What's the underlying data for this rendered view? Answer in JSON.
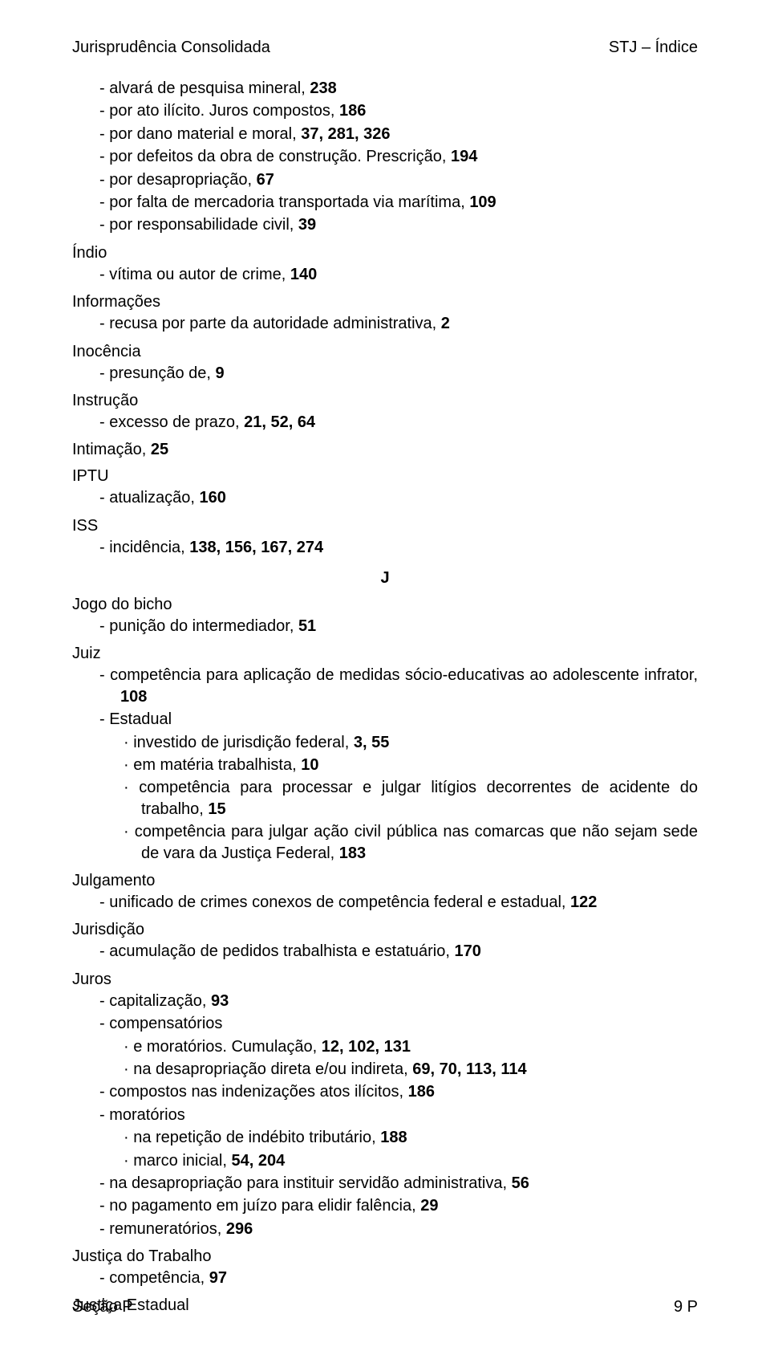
{
  "header": {
    "left": "Jurisprudência Consolidada",
    "right": "STJ – Índice"
  },
  "footer": {
    "left": "Seção P",
    "right": "9 P"
  },
  "sections": [
    {
      "letter": "",
      "preItems": [
        {
          "type": "l1",
          "pre": "-   ",
          "plain": "alvará de pesquisa mineral, ",
          "bold": "238"
        },
        {
          "type": "l1",
          "pre": "-   ",
          "plain": "por ato ilícito. Juros compostos, ",
          "bold": "186"
        },
        {
          "type": "l1",
          "pre": "-   ",
          "plain": "por dano material e moral, ",
          "bold": "37, 281, 326"
        },
        {
          "type": "l1",
          "pre": "-   ",
          "plain": "por defeitos da obra de construção. Prescrição, ",
          "bold": "194"
        },
        {
          "type": "l1",
          "pre": "-   ",
          "plain": "por desapropriação, ",
          "bold": "67"
        },
        {
          "type": "l1",
          "pre": "-   ",
          "plain": "por falta de mercadoria transportada via marítima, ",
          "bold": "109"
        },
        {
          "type": "l1",
          "pre": "-   ",
          "plain": "por responsabilidade civil, ",
          "bold": "39"
        }
      ],
      "groups": [
        {
          "term": "Índio",
          "items": [
            {
              "type": "l1",
              "pre": "-   ",
              "plain": "vítima ou autor de crime, ",
              "bold": "140"
            }
          ]
        },
        {
          "term": "Informações",
          "items": [
            {
              "type": "l1",
              "pre": "-   ",
              "plain": "recusa por parte da autoridade administrativa, ",
              "bold": "2"
            }
          ]
        },
        {
          "term": "Inocência",
          "items": [
            {
              "type": "l1",
              "pre": "-   ",
              "plain": "presunção de, ",
              "bold": "9"
            }
          ]
        },
        {
          "term": "Instrução",
          "items": [
            {
              "type": "l1",
              "pre": "-   ",
              "plain": "excesso de prazo, ",
              "bold": "21, 52, 64"
            }
          ]
        },
        {
          "term": "Intimação, ",
          "termBold": "25",
          "items": []
        },
        {
          "term": "IPTU",
          "items": [
            {
              "type": "l1",
              "pre": "-   ",
              "plain": "atualização, ",
              "bold": "160"
            }
          ]
        },
        {
          "term": "ISS",
          "items": [
            {
              "type": "l1",
              "pre": "-   ",
              "plain": "incidência, ",
              "bold": "138, 156, 167, 274"
            }
          ]
        }
      ]
    },
    {
      "letter": "J",
      "preItems": [],
      "groups": [
        {
          "term": "Jogo do bicho",
          "items": [
            {
              "type": "l1",
              "pre": "-   ",
              "plain": "punição do intermediador, ",
              "bold": "51"
            }
          ]
        },
        {
          "term": "Juiz",
          "items": [
            {
              "type": "l1",
              "pre": "-   ",
              "plain": "competência para aplicação de medidas sócio-educativas ao adolescente infrator, ",
              "bold": "108"
            },
            {
              "type": "l1",
              "pre": "-   ",
              "plain": "Estadual",
              "bold": ""
            },
            {
              "type": "l2",
              "pre": "·  ",
              "plain": "investido de jurisdição federal, ",
              "bold": "3, 55"
            },
            {
              "type": "l2",
              "pre": "·  ",
              "plain": "em matéria trabalhista, ",
              "bold": "10"
            },
            {
              "type": "l2",
              "pre": "·  ",
              "plain": "competência para processar e julgar litígios decorrentes de acidente do trabalho, ",
              "bold": "15"
            },
            {
              "type": "l2",
              "pre": "·  ",
              "plain": "competência para julgar ação civil pública nas comarcas que não sejam sede de vara da Justiça Federal, ",
              "bold": "183"
            }
          ]
        },
        {
          "term": "Julgamento",
          "items": [
            {
              "type": "l1",
              "pre": "-   ",
              "plain": "unificado de crimes conexos de competência federal e estadual, ",
              "bold": "122"
            }
          ]
        },
        {
          "term": "Jurisdição",
          "items": [
            {
              "type": "l1",
              "pre": "-   ",
              "plain": "acumulação de pedidos trabalhista e estatuário, ",
              "bold": "170"
            }
          ]
        },
        {
          "term": "Juros",
          "items": [
            {
              "type": "l1",
              "pre": "-   ",
              "plain": "capitalização, ",
              "bold": "93"
            },
            {
              "type": "l1",
              "pre": "-   ",
              "plain": "compensatórios",
              "bold": ""
            },
            {
              "type": "l2",
              "pre": "·  ",
              "plain": "e moratórios. Cumulação, ",
              "bold": "12, 102, 131"
            },
            {
              "type": "l2",
              "pre": "·  ",
              "plain": "na desapropriação direta e/ou indireta, ",
              "bold": "69, 70, 113, 114"
            },
            {
              "type": "l1",
              "pre": "-   ",
              "plain": "compostos nas indenizações atos ilícitos, ",
              "bold": "186"
            },
            {
              "type": "l1",
              "pre": "-   ",
              "plain": "moratórios",
              "bold": ""
            },
            {
              "type": "l2",
              "pre": "·  ",
              "plain": "na repetição de indébito tributário, ",
              "bold": "188"
            },
            {
              "type": "l2",
              "pre": "·  ",
              "plain": "marco inicial, ",
              "bold": "54, 204"
            },
            {
              "type": "l1",
              "pre": "-   ",
              "plain": "na desapropriação para instituir servidão administrativa, ",
              "bold": "56"
            },
            {
              "type": "l1",
              "pre": "-   ",
              "plain": "no pagamento em juízo para elidir falência, ",
              "bold": "29"
            },
            {
              "type": "l1",
              "pre": "-   ",
              "plain": "remuneratórios, ",
              "bold": "296"
            }
          ]
        },
        {
          "term": "Justiça do Trabalho",
          "items": [
            {
              "type": "l1",
              "pre": "-   ",
              "plain": "competência, ",
              "bold": "97"
            }
          ]
        },
        {
          "term": "Justiça Estadual",
          "items": []
        }
      ]
    }
  ]
}
